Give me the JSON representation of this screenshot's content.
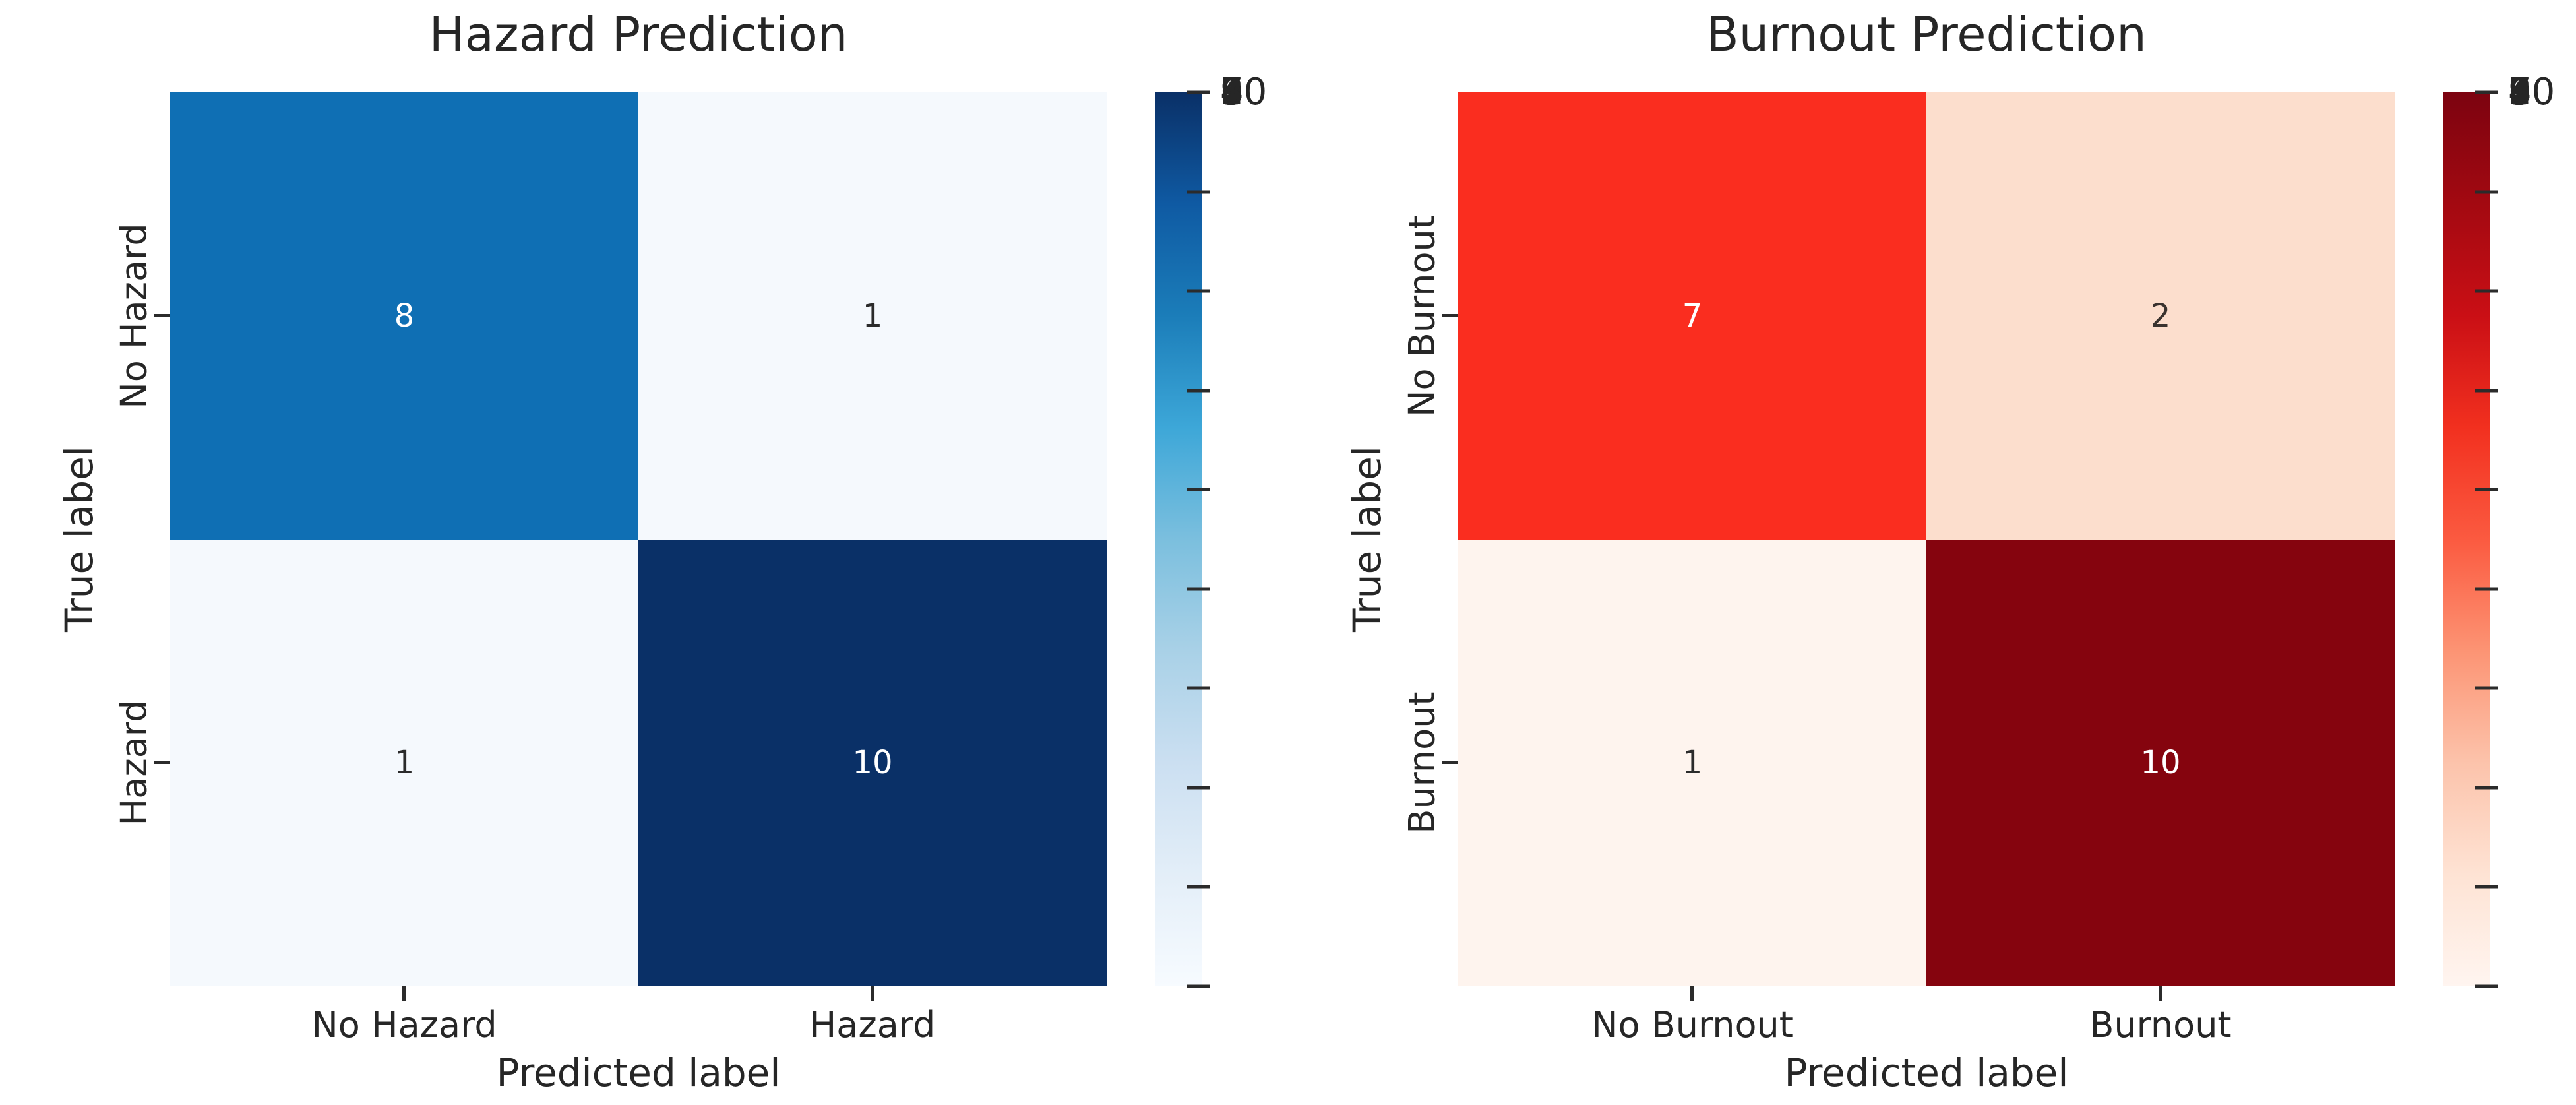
{
  "background": "#ffffff",
  "chart_data": [
    {
      "type": "heatmap",
      "title": "Hazard Prediction",
      "xlabel": "Predicted label",
      "ylabel": "True label",
      "x_categories": [
        "No Hazard",
        "Hazard"
      ],
      "y_categories": [
        "No Hazard",
        "Hazard"
      ],
      "matrix": [
        [
          8,
          1
        ],
        [
          1,
          10
        ]
      ],
      "vmin": 1,
      "vmax": 10,
      "colormap": "Blues",
      "grid": "off",
      "legend_position": "right-colorbar",
      "cells": [
        {
          "value": "8",
          "bg": "#0f6fb4",
          "fg": "#ffffff"
        },
        {
          "value": "1",
          "bg": "#f5f9fd",
          "fg": "#2b2b2b"
        },
        {
          "value": "1",
          "bg": "#f5f9fd",
          "fg": "#2b2b2b"
        },
        {
          "value": "10",
          "bg": "#0a3067",
          "fg": "#ffffff"
        }
      ],
      "colorbar": {
        "ticks": [
          "10",
          "9",
          "8",
          "7",
          "6",
          "5",
          "4",
          "3",
          "2",
          "1"
        ],
        "gradient_bottom_to_top": [
          "#f7fbff",
          "#e3eef8",
          "#cbdff1",
          "#a9d1e7",
          "#7bbfde",
          "#3da7d8",
          "#1b7db9",
          "#0f5aa3",
          "#0a3067"
        ]
      }
    },
    {
      "type": "heatmap",
      "title": "Burnout Prediction",
      "xlabel": "Predicted label",
      "ylabel": "True label",
      "x_categories": [
        "No Burnout",
        "Burnout"
      ],
      "y_categories": [
        "No Burnout",
        "Burnout"
      ],
      "matrix": [
        [
          7,
          2
        ],
        [
          1,
          10
        ]
      ],
      "vmin": 1,
      "vmax": 10,
      "colormap": "Reds",
      "grid": "off",
      "legend_position": "right-colorbar",
      "cells": [
        {
          "value": "7",
          "bg": "#fa2d1f",
          "fg": "#ffffff"
        },
        {
          "value": "2",
          "bg": "#fcdecd",
          "fg": "#3a332f"
        },
        {
          "value": "1",
          "bg": "#fef4ee",
          "fg": "#2b2b2b"
        },
        {
          "value": "10",
          "bg": "#85040e",
          "fg": "#ffffff"
        }
      ],
      "colorbar": {
        "ticks": [
          "10",
          "9",
          "8",
          "7",
          "6",
          "5",
          "4",
          "3",
          "2",
          "1"
        ],
        "gradient_bottom_to_top": [
          "#fff5f0",
          "#fee3d4",
          "#fcc3ab",
          "#fc9474",
          "#fb5a40",
          "#f2301f",
          "#ca0f15",
          "#a30911",
          "#7c0310"
        ]
      }
    }
  ]
}
